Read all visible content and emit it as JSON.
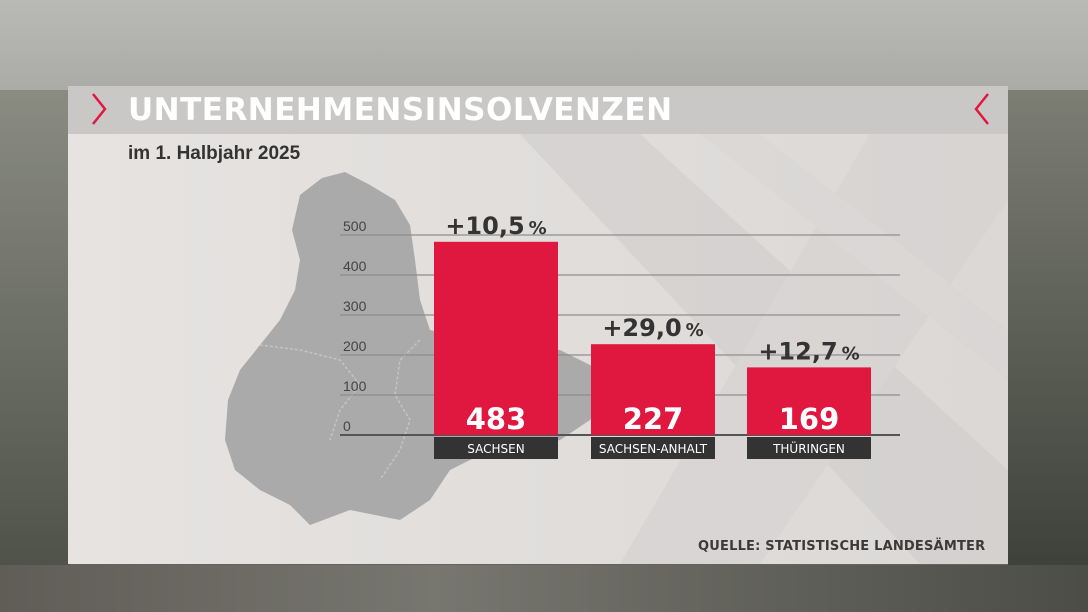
{
  "header": {
    "title": "UNTERNEHMENSINSOLVENZEN"
  },
  "subtitle": "im 1. Halbjahr 2025",
  "source": "QUELLE: STATISTISCHE LANDESÄMTER",
  "colors": {
    "bar": "#e0173f",
    "label_box": "#333333",
    "accent": "#e0173f",
    "map": "#a9a9aa"
  },
  "chart_data": {
    "type": "bar",
    "title": "UNTERNEHMENSINSOLVENZEN",
    "subtitle": "im 1. Halbjahr 2025",
    "categories": [
      "SACHSEN",
      "SACHSEN-ANHALT",
      "THÜRINGEN"
    ],
    "values": [
      483,
      227,
      169
    ],
    "value_labels": [
      "483",
      "227",
      "169"
    ],
    "change_labels": [
      "+10,5",
      "+29,0",
      "+12,7"
    ],
    "change_unit": "%",
    "yticks": [
      0,
      100,
      200,
      300,
      400,
      500
    ],
    "ylim": [
      0,
      500
    ],
    "grid": true
  }
}
